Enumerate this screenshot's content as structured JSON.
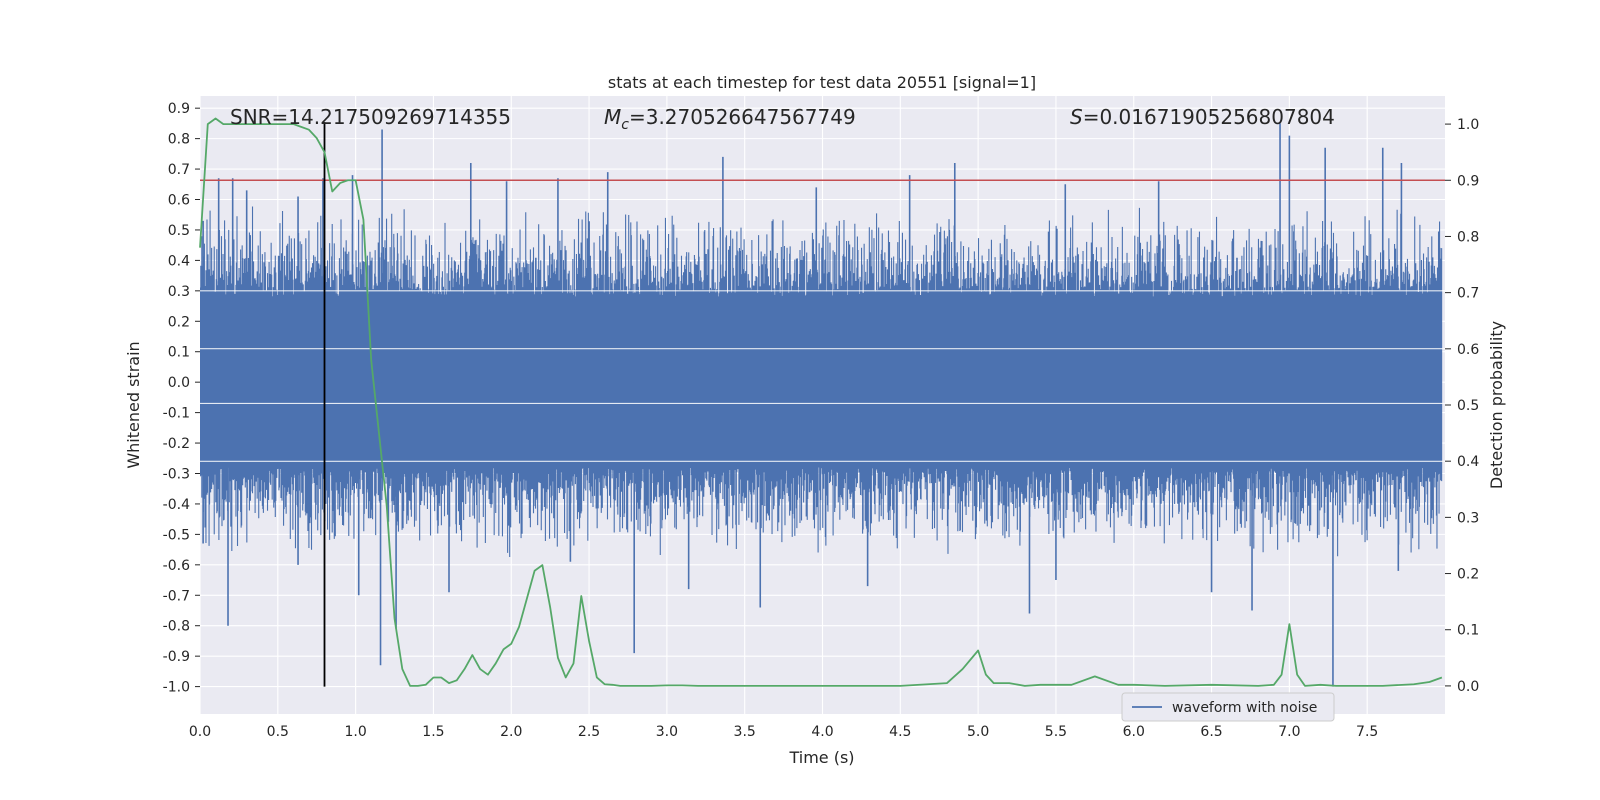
{
  "chart_data": {
    "type": "line",
    "title": "stats at each timestep for test data 20551 [signal=1]",
    "xlabel": "Time (s)",
    "ylabel": "Whitened strain",
    "ylabel_right": "Detection probability",
    "xlim": [
      0.0,
      8.0
    ],
    "ylim": [
      -1.09,
      0.94
    ],
    "ylim_right": [
      -0.05,
      1.05
    ],
    "x_ticks": [
      "0.0",
      "0.5",
      "1.0",
      "1.5",
      "2.0",
      "2.5",
      "3.0",
      "3.5",
      "4.0",
      "4.5",
      "5.0",
      "5.5",
      "6.0",
      "6.5",
      "7.0",
      "7.5"
    ],
    "x_tick_values": [
      0.0,
      0.5,
      1.0,
      1.5,
      2.0,
      2.5,
      3.0,
      3.5,
      4.0,
      4.5,
      5.0,
      5.5,
      6.0,
      6.5,
      7.0,
      7.5
    ],
    "y_ticks": [
      "0.9",
      "0.8",
      "0.7",
      "0.6",
      "0.5",
      "0.4",
      "0.3",
      "0.2",
      "0.1",
      "0.0",
      "-0.1",
      "-0.2",
      "-0.3",
      "-0.4",
      "-0.5",
      "-0.6",
      "-0.7",
      "-0.8",
      "-0.9",
      "-1.0"
    ],
    "y_tick_values": [
      0.9,
      0.8,
      0.7,
      0.6,
      0.5,
      0.4,
      0.3,
      0.2,
      0.1,
      0.0,
      -0.1,
      -0.2,
      -0.3,
      -0.4,
      -0.5,
      -0.6,
      -0.7,
      -0.8,
      -0.9,
      -1.0
    ],
    "y2_ticks": [
      "1.0",
      "0.9",
      "0.8",
      "0.7",
      "0.6",
      "0.5",
      "0.4",
      "0.3",
      "0.2",
      "0.1",
      "0.0"
    ],
    "y2_tick_values": [
      1.0,
      0.9,
      0.8,
      0.7,
      0.6,
      0.5,
      0.4,
      0.3,
      0.2,
      0.1,
      0.0
    ],
    "annotations": {
      "snr": "SNR=14.217509269714355",
      "mc_symbol": "M",
      "mc_sub": "c",
      "mc_value": "=3.270526647567749",
      "s_symbol": "S",
      "s_value": "=0.01671905256807804"
    },
    "threshold_probability": 0.9,
    "marker_time": 0.8,
    "legend": [
      {
        "name": "waveform with noise",
        "color": "#4c72b0"
      }
    ],
    "series": [
      {
        "name": "waveform with noise",
        "axis": "left",
        "color": "#4c72b0",
        "kind": "noise-envelope",
        "peak_high": [
          {
            "x": 0.02,
            "y": 0.53
          },
          {
            "x": 0.12,
            "y": 0.67
          },
          {
            "x": 0.21,
            "y": 0.67
          },
          {
            "x": 0.3,
            "y": 0.63
          },
          {
            "x": 0.63,
            "y": 0.61
          },
          {
            "x": 0.79,
            "y": 0.67
          },
          {
            "x": 0.98,
            "y": 0.68
          },
          {
            "x": 1.17,
            "y": 0.83
          },
          {
            "x": 1.74,
            "y": 0.72
          },
          {
            "x": 1.97,
            "y": 0.66
          },
          {
            "x": 2.3,
            "y": 0.67
          },
          {
            "x": 2.62,
            "y": 0.69
          },
          {
            "x": 3.36,
            "y": 0.74
          },
          {
            "x": 3.96,
            "y": 0.64
          },
          {
            "x": 4.56,
            "y": 0.68
          },
          {
            "x": 4.85,
            "y": 0.72
          },
          {
            "x": 5.56,
            "y": 0.65
          },
          {
            "x": 6.16,
            "y": 0.66
          },
          {
            "x": 6.94,
            "y": 0.85
          },
          {
            "x": 7.0,
            "y": 0.81
          },
          {
            "x": 7.23,
            "y": 0.77
          },
          {
            "x": 7.6,
            "y": 0.77
          },
          {
            "x": 7.72,
            "y": 0.72
          }
        ],
        "peak_low": [
          {
            "x": 0.02,
            "y": -0.53
          },
          {
            "x": 0.18,
            "y": -0.8
          },
          {
            "x": 0.63,
            "y": -0.6
          },
          {
            "x": 1.02,
            "y": -0.7
          },
          {
            "x": 1.16,
            "y": -0.93
          },
          {
            "x": 1.26,
            "y": -0.81
          },
          {
            "x": 1.6,
            "y": -0.69
          },
          {
            "x": 2.38,
            "y": -0.59
          },
          {
            "x": 2.79,
            "y": -0.89
          },
          {
            "x": 3.14,
            "y": -0.68
          },
          {
            "x": 3.6,
            "y": -0.74
          },
          {
            "x": 4.29,
            "y": -0.67
          },
          {
            "x": 5.33,
            "y": -0.76
          },
          {
            "x": 5.5,
            "y": -0.65
          },
          {
            "x": 6.5,
            "y": -0.69
          },
          {
            "x": 6.76,
            "y": -0.75
          },
          {
            "x": 7.28,
            "y": -1.0
          },
          {
            "x": 7.7,
            "y": -0.62
          }
        ]
      },
      {
        "name": "Detection probability",
        "axis": "right",
        "color": "#55a868",
        "x": [
          0.0,
          0.05,
          0.1,
          0.15,
          0.2,
          0.3,
          0.4,
          0.5,
          0.6,
          0.65,
          0.7,
          0.75,
          0.8,
          0.85,
          0.9,
          0.95,
          1.0,
          1.05,
          1.1,
          1.15,
          1.2,
          1.25,
          1.3,
          1.35,
          1.4,
          1.45,
          1.5,
          1.55,
          1.6,
          1.65,
          1.7,
          1.75,
          1.8,
          1.85,
          1.9,
          1.95,
          2.0,
          2.05,
          2.1,
          2.15,
          2.2,
          2.25,
          2.3,
          2.35,
          2.4,
          2.45,
          2.5,
          2.55,
          2.6,
          2.65,
          2.7,
          2.75,
          2.8,
          2.85,
          2.9,
          3.0,
          3.1,
          3.2,
          3.3,
          3.5,
          4.0,
          4.5,
          4.8,
          4.9,
          5.0,
          5.05,
          5.1,
          5.2,
          5.3,
          5.4,
          5.5,
          5.6,
          5.75,
          5.9,
          6.0,
          6.2,
          6.5,
          6.8,
          6.9,
          6.95,
          7.0,
          7.05,
          7.1,
          7.2,
          7.3,
          7.6,
          7.8,
          7.9,
          7.98
        ],
        "y": [
          0.78,
          1.0,
          1.01,
          1.0,
          1.0,
          1.0,
          1.0,
          1.0,
          1.0,
          0.995,
          0.99,
          0.975,
          0.95,
          0.88,
          0.895,
          0.9,
          0.9,
          0.83,
          0.58,
          0.45,
          0.32,
          0.12,
          0.03,
          0.0,
          0.0,
          0.002,
          0.015,
          0.015,
          0.005,
          0.01,
          0.03,
          0.055,
          0.03,
          0.02,
          0.04,
          0.065,
          0.075,
          0.105,
          0.155,
          0.205,
          0.215,
          0.14,
          0.05,
          0.015,
          0.04,
          0.16,
          0.08,
          0.015,
          0.003,
          0.002,
          0.0,
          0.0,
          0.0,
          0.0,
          0.0,
          0.001,
          0.001,
          0.0,
          0.0,
          0.0,
          0.0,
          0.0,
          0.005,
          0.03,
          0.063,
          0.02,
          0.005,
          0.005,
          0.0,
          0.002,
          0.002,
          0.002,
          0.017,
          0.002,
          0.002,
          0.0,
          0.002,
          0.0,
          0.002,
          0.02,
          0.11,
          0.02,
          0.0,
          0.002,
          0.0,
          0.0,
          0.003,
          0.007,
          0.015
        ]
      }
    ]
  }
}
